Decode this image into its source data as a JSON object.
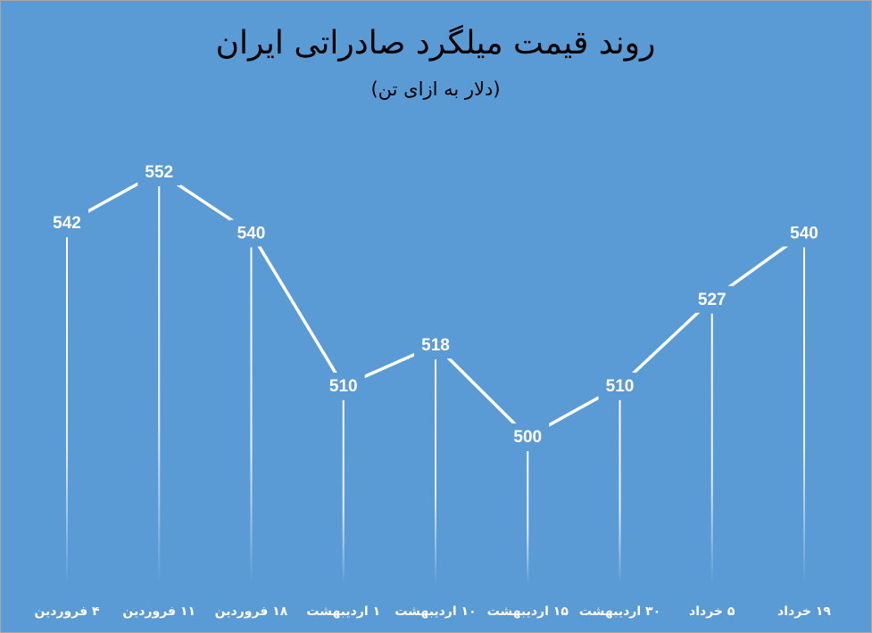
{
  "chart_data": {
    "type": "line",
    "title": "روند قیمت میلگرد صادراتی ایران",
    "subtitle": "(دلار به ازای تن)",
    "categories": [
      "۴ فروردین",
      "۱۱ فروردین",
      "۱۸ فروردین",
      "۱ اردیبهشت",
      "۱۰ اردیبهشت",
      "۱۵ اردیبهشت",
      "۳۰ اردیبهشت",
      "۵ خرداد",
      "۱۹ خرداد"
    ],
    "values": [
      542,
      552,
      540,
      510,
      518,
      500,
      510,
      527,
      540
    ],
    "color": "#ffffff",
    "background": "#5b9bd5"
  }
}
